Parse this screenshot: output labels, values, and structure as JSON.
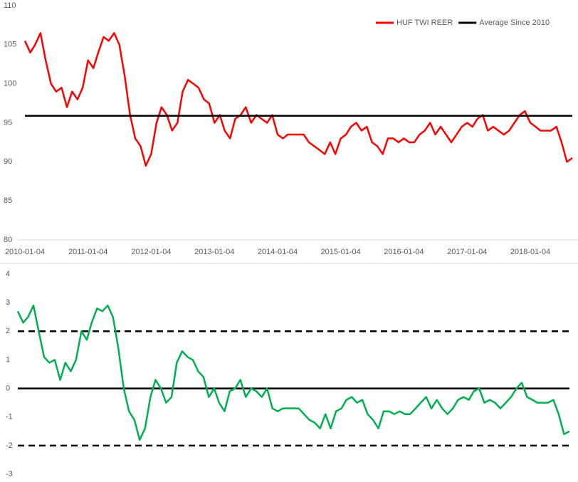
{
  "chart_data": [
    {
      "type": "line",
      "x": [
        "2010-01-04",
        "2010-02-04",
        "2010-03-04",
        "2010-04-04",
        "2010-05-04",
        "2010-06-04",
        "2010-07-04",
        "2010-08-04",
        "2010-09-04",
        "2010-10-04",
        "2010-11-04",
        "2010-12-04",
        "2011-01-04",
        "2011-02-04",
        "2011-03-04",
        "2011-04-04",
        "2011-05-04",
        "2011-06-04",
        "2011-07-04",
        "2011-08-04",
        "2011-09-04",
        "2011-10-04",
        "2011-11-04",
        "2011-12-04",
        "2012-01-04",
        "2012-02-04",
        "2012-03-04",
        "2012-04-04",
        "2012-05-04",
        "2012-06-04",
        "2012-07-04",
        "2012-08-04",
        "2012-09-04",
        "2012-10-04",
        "2012-11-04",
        "2012-12-04",
        "2013-01-04",
        "2013-02-04",
        "2013-03-04",
        "2013-04-04",
        "2013-05-04",
        "2013-06-04",
        "2013-07-04",
        "2013-08-04",
        "2013-09-04",
        "2013-10-04",
        "2013-11-04",
        "2013-12-04",
        "2014-01-04",
        "2014-02-04",
        "2014-03-04",
        "2014-04-04",
        "2014-05-04",
        "2014-06-04",
        "2014-07-04",
        "2014-08-04",
        "2014-09-04",
        "2014-10-04",
        "2014-11-04",
        "2014-12-04",
        "2015-01-04",
        "2015-02-04",
        "2015-03-04",
        "2015-04-04",
        "2015-05-04",
        "2015-06-04",
        "2015-07-04",
        "2015-08-04",
        "2015-09-04",
        "2015-10-04",
        "2015-11-04",
        "2015-12-04",
        "2016-01-04",
        "2016-02-04",
        "2016-03-04",
        "2016-04-04",
        "2016-05-04",
        "2016-06-04",
        "2016-07-04",
        "2016-08-04",
        "2016-09-04",
        "2016-10-04",
        "2016-11-04",
        "2016-12-04",
        "2017-01-04",
        "2017-02-04",
        "2017-03-04",
        "2017-04-04",
        "2017-05-04",
        "2017-06-04",
        "2017-07-04",
        "2017-08-04",
        "2017-09-04",
        "2017-10-04",
        "2017-11-04",
        "2017-12-04",
        "2018-01-04",
        "2018-02-04",
        "2018-03-04",
        "2018-04-04",
        "2018-05-04",
        "2018-06-04",
        "2018-07-04",
        "2018-08-04",
        "2018-09-04"
      ],
      "series": [
        {
          "name": "HUF TWI REER",
          "color": "#ff0000",
          "values": [
            105.5,
            104,
            105,
            106.5,
            103,
            100,
            99,
            99.5,
            97,
            99,
            98,
            99.5,
            103,
            102,
            104,
            106,
            105.5,
            106.5,
            105,
            101,
            96,
            93,
            92,
            89.5,
            91,
            95,
            97,
            96,
            94,
            95,
            99,
            100.5,
            100,
            99.5,
            98,
            97.5,
            95,
            96,
            94,
            93,
            95.5,
            96,
            97,
            95,
            96,
            95.5,
            95,
            96,
            93.5,
            93,
            93.5,
            93.5,
            93.5,
            93.5,
            92.5,
            92,
            91.5,
            91,
            92.5,
            91,
            93,
            93.5,
            94.5,
            95,
            94,
            94.5,
            92.5,
            92,
            91,
            93,
            93,
            92.5,
            93,
            92.5,
            92.5,
            93.5,
            94,
            95,
            93.5,
            94.5,
            93.5,
            92.5,
            93.5,
            94.5,
            95,
            94.5,
            95.5,
            96,
            94,
            94.5,
            94,
            93.5,
            94,
            95,
            96,
            96.5,
            95,
            94.5,
            94,
            94,
            94,
            94.5,
            92.5,
            90,
            90.5
          ]
        },
        {
          "name": "Average Since 2010",
          "color": "#000000",
          "x": [
            "2010-01-04",
            "2018-09-04"
          ],
          "values": [
            95.9,
            95.9
          ]
        }
      ],
      "xlim": [
        "2010-01-04",
        "2018-09-04"
      ],
      "xticks": [
        "2010-01-04",
        "2011-01-04",
        "2012-01-04",
        "2013-01-04",
        "2014-01-04",
        "2015-01-04",
        "2016-01-04",
        "2017-01-04",
        "2018-01-04"
      ],
      "ylim": [
        80,
        110
      ],
      "yticks": [
        80,
        85,
        90,
        95,
        100,
        105,
        110
      ],
      "legend": "top-right"
    },
    {
      "type": "line",
      "x": [
        "2010-01-04",
        "2010-02-04",
        "2010-03-04",
        "2010-04-04",
        "2010-05-04",
        "2010-06-04",
        "2010-07-04",
        "2010-08-04",
        "2010-09-04",
        "2010-10-04",
        "2010-11-04",
        "2010-12-04",
        "2011-01-04",
        "2011-02-04",
        "2011-03-04",
        "2011-04-04",
        "2011-05-04",
        "2011-06-04",
        "2011-07-04",
        "2011-08-04",
        "2011-09-04",
        "2011-10-04",
        "2011-11-04",
        "2011-12-04",
        "2012-01-04",
        "2012-02-04",
        "2012-03-04",
        "2012-04-04",
        "2012-05-04",
        "2012-06-04",
        "2012-07-04",
        "2012-08-04",
        "2012-09-04",
        "2012-10-04",
        "2012-11-04",
        "2012-12-04",
        "2013-01-04",
        "2013-02-04",
        "2013-03-04",
        "2013-04-04",
        "2013-05-04",
        "2013-06-04",
        "2013-07-04",
        "2013-08-04",
        "2013-09-04",
        "2013-10-04",
        "2013-11-04",
        "2013-12-04",
        "2014-01-04",
        "2014-02-04",
        "2014-03-04",
        "2014-04-04",
        "2014-05-04",
        "2014-06-04",
        "2014-07-04",
        "2014-08-04",
        "2014-09-04",
        "2014-10-04",
        "2014-11-04",
        "2014-12-04",
        "2015-01-04",
        "2015-02-04",
        "2015-03-04",
        "2015-04-04",
        "2015-05-04",
        "2015-06-04",
        "2015-07-04",
        "2015-08-04",
        "2015-09-04",
        "2015-10-04",
        "2015-11-04",
        "2015-12-04",
        "2016-01-04",
        "2016-02-04",
        "2016-03-04",
        "2016-04-04",
        "2016-05-04",
        "2016-06-04",
        "2016-07-04",
        "2016-08-04",
        "2016-09-04",
        "2016-10-04",
        "2016-11-04",
        "2016-12-04",
        "2017-01-04",
        "2017-02-04",
        "2017-03-04",
        "2017-04-04",
        "2017-05-04",
        "2017-06-04",
        "2017-07-04",
        "2017-08-04",
        "2017-09-04",
        "2017-10-04",
        "2017-11-04",
        "2017-12-04",
        "2018-01-04",
        "2018-02-04",
        "2018-03-04",
        "2018-04-04",
        "2018-05-04",
        "2018-06-04",
        "2018-07-04",
        "2018-08-04",
        "2018-09-04"
      ],
      "series": [
        {
          "color": "#00b050",
          "values": [
            2.7,
            2.3,
            2.5,
            2.9,
            2.0,
            1.1,
            0.9,
            1.0,
            0.3,
            0.9,
            0.6,
            1.0,
            2.0,
            1.7,
            2.3,
            2.8,
            2.7,
            2.9,
            2.5,
            1.4,
            0.0,
            -0.8,
            -1.1,
            -1.8,
            -1.4,
            -0.3,
            0.3,
            0.0,
            -0.5,
            -0.3,
            0.9,
            1.3,
            1.1,
            1.0,
            0.6,
            0.4,
            -0.3,
            0.0,
            -0.5,
            -0.8,
            -0.1,
            0.0,
            0.3,
            -0.3,
            0.0,
            -0.1,
            -0.3,
            0.0,
            -0.7,
            -0.8,
            -0.7,
            -0.7,
            -0.7,
            -0.7,
            -0.9,
            -1.1,
            -1.2,
            -1.4,
            -0.9,
            -1.4,
            -0.8,
            -0.7,
            -0.4,
            -0.3,
            -0.5,
            -0.4,
            -0.9,
            -1.1,
            -1.4,
            -0.8,
            -0.8,
            -0.9,
            -0.8,
            -0.9,
            -0.9,
            -0.7,
            -0.5,
            -0.3,
            -0.7,
            -0.4,
            -0.7,
            -0.9,
            -0.7,
            -0.4,
            -0.3,
            -0.4,
            -0.1,
            0.0,
            -0.5,
            -0.4,
            -0.5,
            -0.7,
            -0.5,
            -0.3,
            0.0,
            0.2,
            -0.3,
            -0.4,
            -0.5,
            -0.5,
            -0.5,
            -0.4,
            -0.9,
            -1.6,
            -1.5
          ]
        }
      ],
      "hlines": [
        {
          "value": 2,
          "style": "dashed"
        },
        {
          "value": 0,
          "style": "solid"
        },
        {
          "value": -2,
          "style": "dashed"
        }
      ],
      "xlim": [
        "2010-01-04",
        "2018-09-04"
      ],
      "ylim": [
        -3,
        4
      ],
      "yticks": [
        -3,
        -2,
        -1,
        0,
        1,
        2,
        3,
        4
      ]
    }
  ]
}
